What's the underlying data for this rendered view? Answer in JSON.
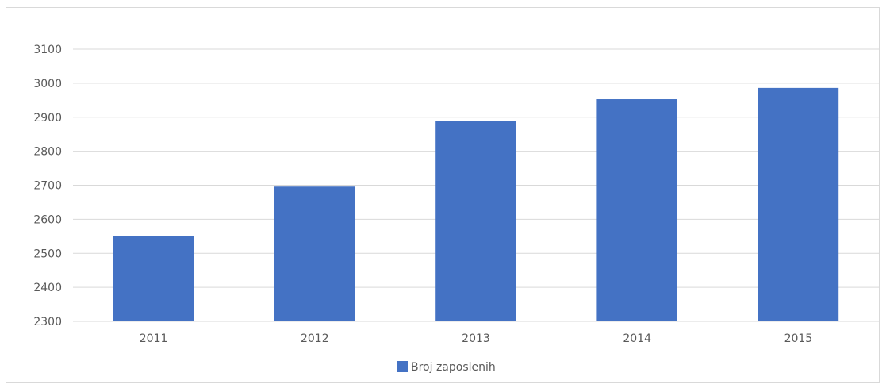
{
  "chart_data": {
    "type": "bar",
    "categories": [
      "2011",
      "2012",
      "2013",
      "2014",
      "2015"
    ],
    "series": [
      {
        "name": "Broj zaposlenih",
        "values": [
          2551,
          2696,
          2890,
          2953,
          2986
        ],
        "color": "#4472c4"
      }
    ],
    "ylim": [
      2300,
      3100
    ],
    "yticks": [
      2300,
      2400,
      2500,
      2600,
      2700,
      2800,
      2900,
      3000,
      3100
    ],
    "grid": true,
    "legend_position": "bottom"
  }
}
